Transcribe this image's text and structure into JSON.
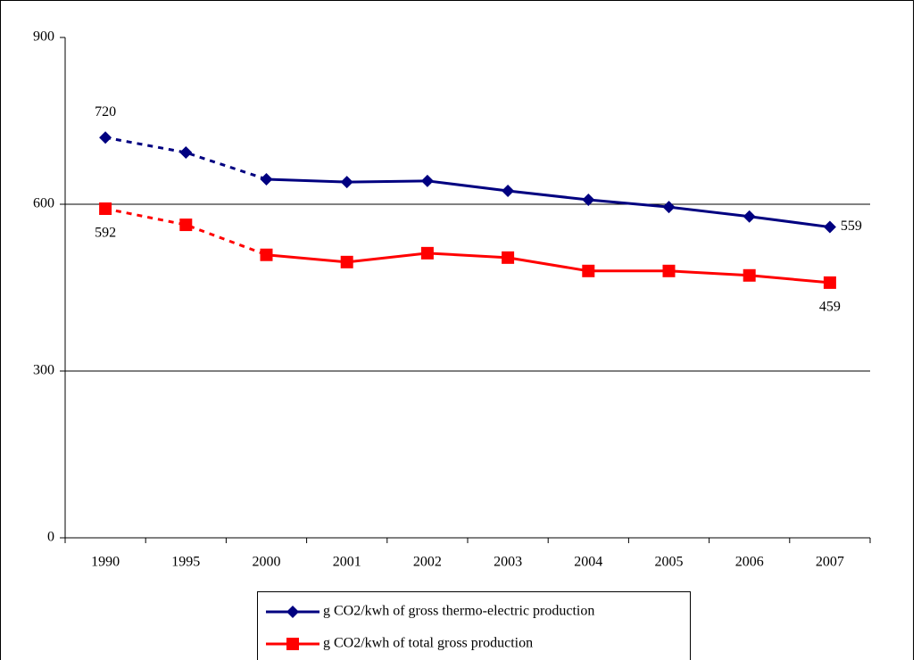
{
  "chart_data": {
    "type": "line",
    "categories": [
      "1990",
      "1995",
      "2000",
      "2001",
      "2002",
      "2003",
      "2004",
      "2005",
      "2006",
      "2007"
    ],
    "series": [
      {
        "name": "g CO2/kwh of gross thermo-electric production",
        "color": "#000080",
        "marker": "diamond",
        "values": [
          720,
          693,
          645,
          640,
          642,
          624,
          608,
          595,
          578,
          559
        ],
        "labeled_points": [
          0,
          9
        ],
        "label_side": [
          "above",
          "right"
        ],
        "dashed_to": 2
      },
      {
        "name": "g CO2/kwh of total gross production",
        "color": "#ff0000",
        "marker": "square",
        "values": [
          592,
          563,
          509,
          496,
          512,
          504,
          480,
          480,
          472,
          459
        ],
        "labeled_points": [
          0,
          9
        ],
        "label_side": [
          "below",
          "below"
        ],
        "dashed_to": 2
      }
    ],
    "ylim": [
      0,
      900
    ],
    "yticks": [
      0,
      300,
      600,
      900
    ],
    "grid": true,
    "legend": "bottom"
  }
}
